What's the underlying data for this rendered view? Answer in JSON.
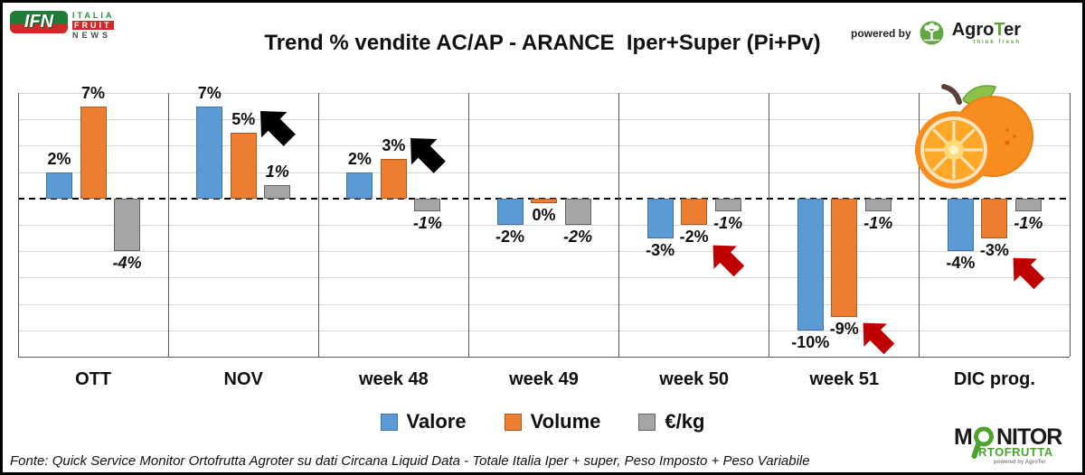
{
  "header": {
    "ifn": {
      "abbr": "IFN",
      "line1": "ITALIA",
      "line2": "FRUIT",
      "line3": "NEWS"
    },
    "title": "Trend % vendite AC/AP - ARANCE  Iper+Super (Pi+Pv)",
    "powered_by_label": "powered by",
    "agroter": {
      "part1": "Agro",
      "part2": "T",
      "part3": "er",
      "tagline": "think fresh"
    }
  },
  "chart_data": {
    "type": "bar",
    "title": "Trend % vendite AC/AP - ARANCE  Iper+Super (Pi+Pv)",
    "categories": [
      "OTT",
      "NOV",
      "week 48",
      "week 49",
      "week 50",
      "week 51",
      "DIC prog."
    ],
    "series": [
      {
        "name": "Valore",
        "color": "#5B9BD5",
        "border": "#41719C",
        "values": [
          2,
          7,
          2,
          -2,
          -3,
          -10,
          -4
        ]
      },
      {
        "name": "Volume",
        "color": "#ED7D31",
        "border": "#AE5A21",
        "values": [
          7,
          5,
          3,
          0,
          -2,
          -9,
          -3
        ]
      },
      {
        "name": "€/kg",
        "color": "#A5A5A5",
        "border": "#636363",
        "values": [
          -4,
          1,
          -1,
          -2,
          -1,
          -1,
          -1
        ]
      }
    ],
    "labels": [
      [
        "2%",
        "7%",
        "-4%"
      ],
      [
        "7%",
        "5%",
        "1%"
      ],
      [
        "2%",
        "3%",
        "-1%"
      ],
      [
        "-2%",
        "0%",
        "-2%"
      ],
      [
        "-3%",
        "-2%",
        "-1%"
      ],
      [
        "-10%",
        "-9%",
        "-1%"
      ],
      [
        "-4%",
        "-3%",
        "-1%"
      ]
    ],
    "ylim": [
      -12,
      8
    ],
    "gridline_step": 2,
    "grid": true,
    "y_axis_labels_visible": false,
    "legend_position": "bottom",
    "annotations": [
      {
        "type": "arrow",
        "direction": "up-left",
        "color": "#000000",
        "category": "NOV"
      },
      {
        "type": "arrow",
        "direction": "up-left",
        "color": "#000000",
        "category": "week 48"
      },
      {
        "type": "arrow",
        "direction": "up-left",
        "color": "#C00000",
        "category": "week 50"
      },
      {
        "type": "arrow",
        "direction": "up-left",
        "color": "#C00000",
        "category": "week 51"
      },
      {
        "type": "arrow",
        "direction": "up-left",
        "color": "#C00000",
        "category": "DIC prog."
      },
      {
        "type": "image",
        "name": "orange-fruit-illustration",
        "category": "DIC prog."
      }
    ]
  },
  "footer": {
    "source": "Fonte: Quick Service Monitor Ortofrutta Agroter su dati Circana Liquid Data - Totale Italia Iper + super, Peso Imposto + Peso Variabile"
  },
  "monitor_logo": {
    "line1_pre": "M",
    "line1_post": "NITOR",
    "line2": "RTOFRUTTA",
    "powered": "powered by AgroTer"
  },
  "colors": {
    "background": "#FFFFFF",
    "outer_border": "#000000",
    "grid": "#D6D6D6",
    "separator": "#595959",
    "zero_line": "#000000",
    "arrow_black": "#000000",
    "arrow_red": "#C00000",
    "ifn_green": "#1E7B38",
    "ifn_red": "#CE2A2A",
    "agroter_green": "#5DA332",
    "monitor_green": "#4CA32F"
  }
}
